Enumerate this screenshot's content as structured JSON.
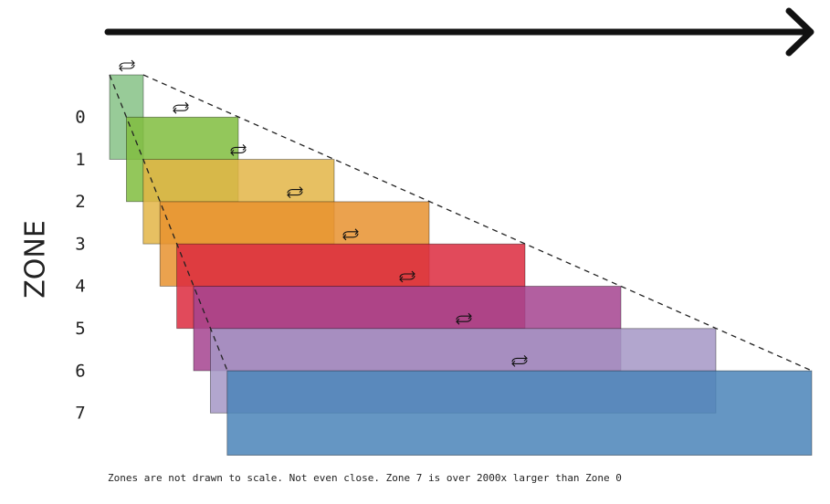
{
  "axis_label": "ZONE",
  "zones": [
    {
      "label": "0",
      "color": "#86c286"
    },
    {
      "label": "1",
      "color": "#80bd3e"
    },
    {
      "label": "2",
      "color": "#e3b547"
    },
    {
      "label": "3",
      "color": "#e8922f"
    },
    {
      "label": "4",
      "color": "#dc2a3e"
    },
    {
      "label": "5",
      "color": "#a5438f"
    },
    {
      "label": "6",
      "color": "#a597c6"
    },
    {
      "label": "7",
      "color": "#4a84b8"
    }
  ],
  "caption": "Zones are not drawn to scale. Not even close. Zone 7 is over 2000x larger than Zone 0"
}
